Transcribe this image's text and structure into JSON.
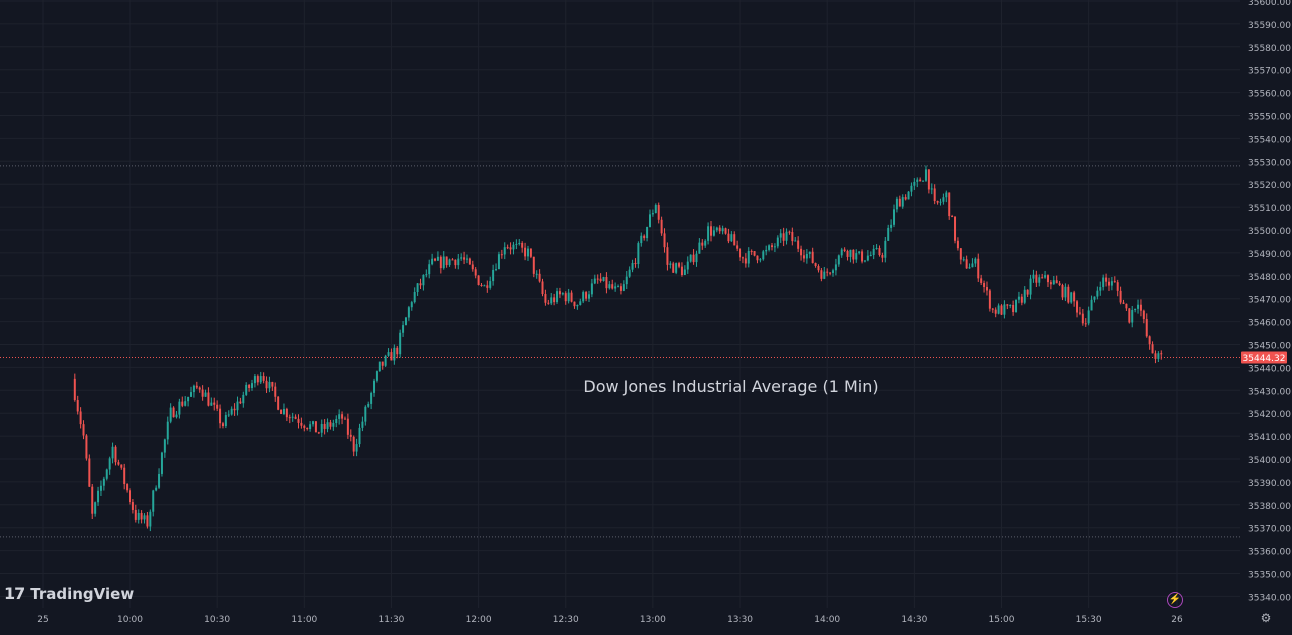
{
  "chart_data": {
    "type": "candlestick",
    "title": "Dow Jones Industrial Average (1 Min)",
    "interval": "1 Min",
    "y_ticks": [
      35340,
      35350,
      35360,
      35370,
      35380,
      35390,
      35400,
      35410,
      35420,
      35430,
      35440,
      35450,
      35460,
      35470,
      35480,
      35490,
      35500,
      35510,
      35520,
      35530,
      35540,
      35550,
      35560,
      35570,
      35580,
      35590,
      35600
    ],
    "y_tick_labels": [
      "35340.00",
      "35350.00",
      "35360.00",
      "35370.00",
      "35380.00",
      "35390.00",
      "35400.00",
      "35410.00",
      "35420.00",
      "35430.00",
      "35440.00",
      "35450.00",
      "35460.00",
      "35470.00",
      "35480.00",
      "35490.00",
      "35500.00",
      "35510.00",
      "35520.00",
      "35530.00",
      "35540.00",
      "35550.00",
      "35560.00",
      "35570.00",
      "35580.00",
      "35590.00",
      "35600.00"
    ],
    "ylim": [
      35334,
      35600
    ],
    "x_ticks": [
      "25",
      "10:00",
      "10:30",
      "11:00",
      "11:30",
      "12:00",
      "12:30",
      "13:00",
      "13:30",
      "14:00",
      "14:30",
      "15:00",
      "15:30",
      "26"
    ],
    "last_price": 35444.32,
    "last_price_label": "35444.32",
    "session_high": 35528,
    "session_low": 35366,
    "key_points": [
      {
        "time": "09:41",
        "price": 35435
      },
      {
        "time": "09:45",
        "price": 35410
      },
      {
        "time": "09:48",
        "price": 35375
      },
      {
        "time": "09:55",
        "price": 35405
      },
      {
        "time": "10:03",
        "price": 35375
      },
      {
        "time": "10:07",
        "price": 35372
      },
      {
        "time": "10:15",
        "price": 35420
      },
      {
        "time": "10:25",
        "price": 35432
      },
      {
        "time": "10:33",
        "price": 35415
      },
      {
        "time": "10:40",
        "price": 35428
      },
      {
        "time": "10:46",
        "price": 35438
      },
      {
        "time": "10:53",
        "price": 35422
      },
      {
        "time": "11:06",
        "price": 35412
      },
      {
        "time": "11:14",
        "price": 35418
      },
      {
        "time": "11:18",
        "price": 35405
      },
      {
        "time": "11:27",
        "price": 35440
      },
      {
        "time": "11:33",
        "price": 35448
      },
      {
        "time": "11:38",
        "price": 35470
      },
      {
        "time": "11:45",
        "price": 35485
      },
      {
        "time": "11:55",
        "price": 35488
      },
      {
        "time": "12:03",
        "price": 35475
      },
      {
        "time": "12:10",
        "price": 35494
      },
      {
        "time": "12:18",
        "price": 35490
      },
      {
        "time": "12:24",
        "price": 35468
      },
      {
        "time": "12:30",
        "price": 35472
      },
      {
        "time": "12:35",
        "price": 35468
      },
      {
        "time": "12:42",
        "price": 35478
      },
      {
        "time": "12:50",
        "price": 35472
      },
      {
        "time": "12:55",
        "price": 35488
      },
      {
        "time": "13:02",
        "price": 35512
      },
      {
        "time": "13:06",
        "price": 35485
      },
      {
        "time": "13:12",
        "price": 35482
      },
      {
        "time": "13:20",
        "price": 35500
      },
      {
        "time": "13:27",
        "price": 35497
      },
      {
        "time": "13:32",
        "price": 35488
      },
      {
        "time": "13:40",
        "price": 35490
      },
      {
        "time": "13:47",
        "price": 35498
      },
      {
        "time": "13:55",
        "price": 35488
      },
      {
        "time": "14:00",
        "price": 35480
      },
      {
        "time": "14:07",
        "price": 35492
      },
      {
        "time": "14:12",
        "price": 35488
      },
      {
        "time": "14:20",
        "price": 35490
      },
      {
        "time": "14:25",
        "price": 35512
      },
      {
        "time": "14:32",
        "price": 35520
      },
      {
        "time": "14:35",
        "price": 35526
      },
      {
        "time": "14:38",
        "price": 35510
      },
      {
        "time": "14:42",
        "price": 35515
      },
      {
        "time": "14:47",
        "price": 35485
      },
      {
        "time": "14:52",
        "price": 35485
      },
      {
        "time": "14:58",
        "price": 35465
      },
      {
        "time": "15:05",
        "price": 35465
      },
      {
        "time": "15:12",
        "price": 35478
      },
      {
        "time": "15:18",
        "price": 35478
      },
      {
        "time": "15:25",
        "price": 35470
      },
      {
        "time": "15:30",
        "price": 35460
      },
      {
        "time": "15:35",
        "price": 35478
      },
      {
        "time": "15:40",
        "price": 35476
      },
      {
        "time": "15:45",
        "price": 35462
      },
      {
        "time": "15:48",
        "price": 35470
      },
      {
        "time": "15:52",
        "price": 35448
      },
      {
        "time": "15:55",
        "price": 35444
      }
    ],
    "grid": true,
    "up_color": "#26a69a",
    "down_color": "#ef5350"
  },
  "watermark": {
    "brand": "TradingView",
    "logo_mark": "17"
  },
  "icons": {
    "bolt": "lightning-icon",
    "settings": "gear-icon"
  },
  "colors": {
    "background": "#131722",
    "grid": "#1e222d",
    "axis_text": "#b2b5be",
    "price_line": "#ef5350",
    "range_line": "#5d606b"
  }
}
